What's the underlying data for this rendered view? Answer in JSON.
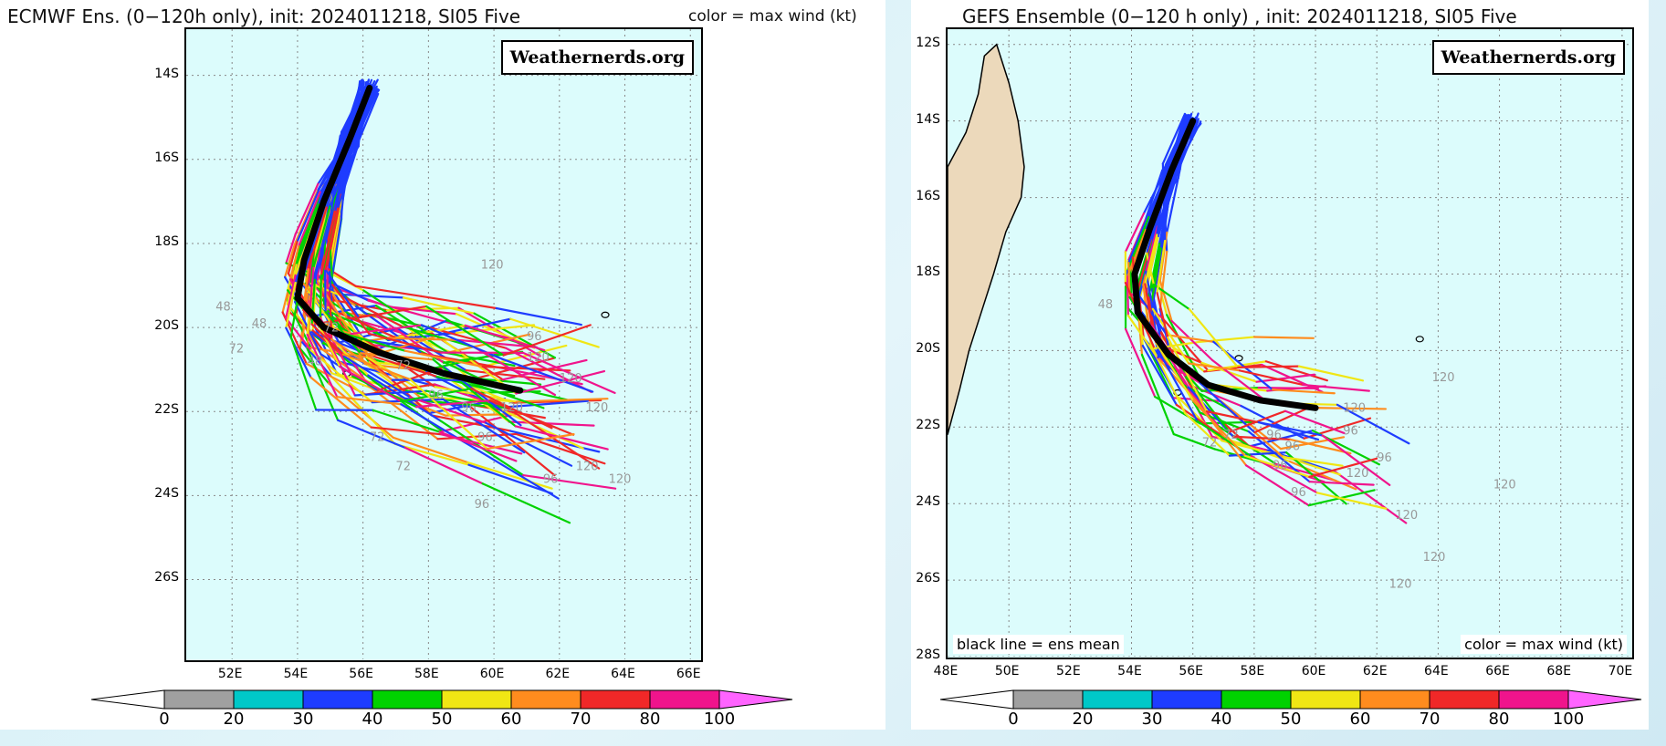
{
  "panels": [
    {
      "id": "ecmwf",
      "title": "ECMWF Ens. (0−120h only), init: 2024011218, SI05 Five",
      "note_top": "color = max wind (kt)",
      "logo": "Weathernerds.org",
      "lat_labels": [
        "14S",
        "16S",
        "18S",
        "20S",
        "22S",
        "24S",
        "26S"
      ],
      "lon_labels": [
        "52E",
        "54E",
        "56E",
        "58E",
        "60E",
        "62E",
        "64E",
        "66E"
      ],
      "colorbar_labels": [
        "0",
        "20",
        "30",
        "40",
        "50",
        "60",
        "70",
        "80",
        "100"
      ],
      "hour_labels": [
        "120",
        "48",
        "48",
        "72",
        "48",
        "72",
        "72",
        "96",
        "96",
        "120",
        "120",
        "96",
        "120",
        "120",
        "72",
        "96",
        "72",
        "96",
        "120",
        "96",
        "120"
      ],
      "mean_track": [
        [
          56.2,
          14.3
        ],
        [
          55.6,
          15.5
        ],
        [
          54.8,
          17.0
        ],
        [
          54.2,
          18.4
        ],
        [
          54.0,
          19.3
        ],
        [
          54.8,
          20.0
        ],
        [
          56.5,
          20.6
        ],
        [
          58.5,
          21.1
        ],
        [
          60.8,
          21.5
        ]
      ]
    },
    {
      "id": "gefs",
      "title": "GEFS Ensemble (0−120 h only) , init: 2024011218, SI05 Five",
      "logo": "Weathernerds.org",
      "note_bottom_left": "black line = ens mean",
      "note_bottom_right": "color = max wind (kt)",
      "lat_labels": [
        "12S",
        "14S",
        "16S",
        "18S",
        "20S",
        "22S",
        "24S",
        "26S",
        "28S"
      ],
      "lon_labels": [
        "48E",
        "50E",
        "52E",
        "54E",
        "56E",
        "58E",
        "60E",
        "62E",
        "64E",
        "66E",
        "68E",
        "70E"
      ],
      "colorbar_labels": [
        "0",
        "20",
        "30",
        "40",
        "50",
        "60",
        "70",
        "80",
        "100"
      ],
      "hour_labels": [
        "48",
        "120",
        "120",
        "96",
        "96",
        "96",
        "96",
        "72",
        "96",
        "120",
        "120",
        "120",
        "120",
        "120",
        "72",
        "96"
      ],
      "mean_track": [
        [
          56.0,
          14.0
        ],
        [
          55.3,
          15.3
        ],
        [
          54.6,
          16.8
        ],
        [
          54.1,
          18.0
        ],
        [
          54.2,
          19.0
        ],
        [
          55.2,
          20.1
        ],
        [
          56.5,
          20.9
        ],
        [
          58.2,
          21.3
        ],
        [
          60.0,
          21.5
        ]
      ]
    }
  ],
  "colorbar_colors": [
    "#a0a0a0",
    "#00c8c8",
    "#1e3cff",
    "#00d200",
    "#f0e614",
    "#ff8c1e",
    "#f02828",
    "#f0148c",
    "#ff64ff"
  ],
  "track_colors": [
    "#1e3cff",
    "#00d200",
    "#f0e614",
    "#ff8c1e",
    "#f02828",
    "#f0148c",
    "#00c8c8",
    "#a0a0a0"
  ],
  "land_color": "#ecd9bb"
}
